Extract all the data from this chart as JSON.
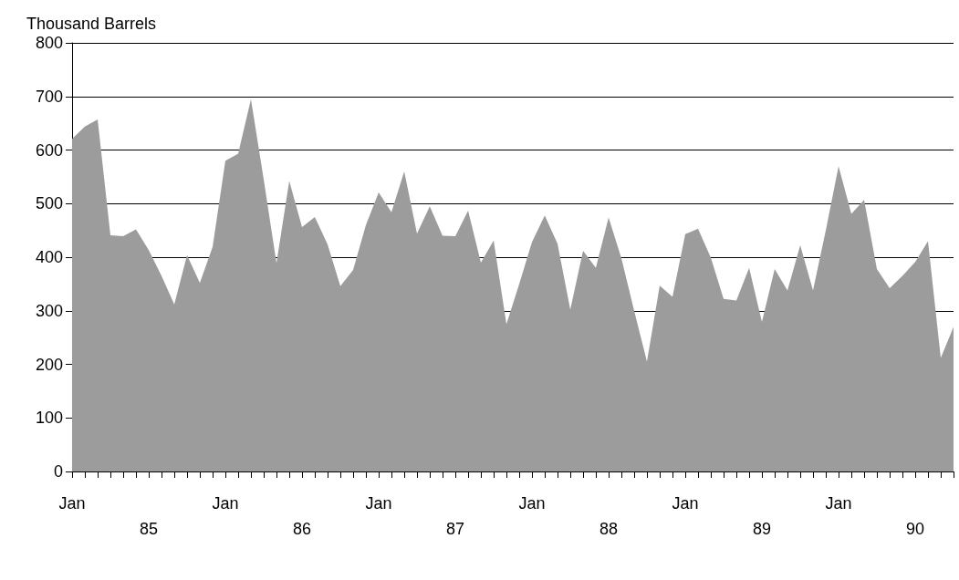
{
  "chart_data": {
    "type": "area",
    "ylabel": "Thousand Barrels",
    "categories": [
      "Jan",
      null,
      null,
      null,
      null,
      null,
      "85",
      null,
      null,
      null,
      null,
      null,
      "Jan",
      null,
      null,
      null,
      null,
      null,
      "86",
      null,
      null,
      null,
      null,
      null,
      "Jan",
      null,
      null,
      null,
      null,
      null,
      "87",
      null,
      null,
      null,
      null,
      null,
      "Jan",
      null,
      null,
      null,
      null,
      null,
      "88",
      null,
      null,
      null,
      null,
      null,
      "Jan",
      null,
      null,
      null,
      null,
      null,
      "89",
      null,
      null,
      null,
      null,
      null,
      "Jan",
      null,
      null,
      null,
      null,
      null,
      "90",
      null,
      null,
      null
    ],
    "series": [
      {
        "color": "#9c9c9c",
        "values": [
          621,
          644,
          657,
          441,
          439,
          452,
          413,
          365,
          312,
          404,
          352,
          419,
          580,
          593,
          695,
          545,
          389,
          542,
          456,
          475,
          424,
          346,
          376,
          460,
          521,
          484,
          560,
          444,
          495,
          440,
          439,
          487,
          390,
          431,
          275,
          350,
          428,
          478,
          425,
          302,
          412,
          380,
          474,
          398,
          300,
          205,
          347,
          326,
          443,
          453,
          399,
          322,
          319,
          380,
          279,
          378,
          338,
          422,
          338,
          450,
          570,
          481,
          507,
          378,
          342,
          365,
          391,
          430,
          212,
          270
        ]
      }
    ],
    "ylim": [
      0,
      800
    ],
    "yticks": [
      0,
      100,
      200,
      300,
      400,
      500,
      600,
      700,
      800
    ],
    "grid": "y"
  }
}
